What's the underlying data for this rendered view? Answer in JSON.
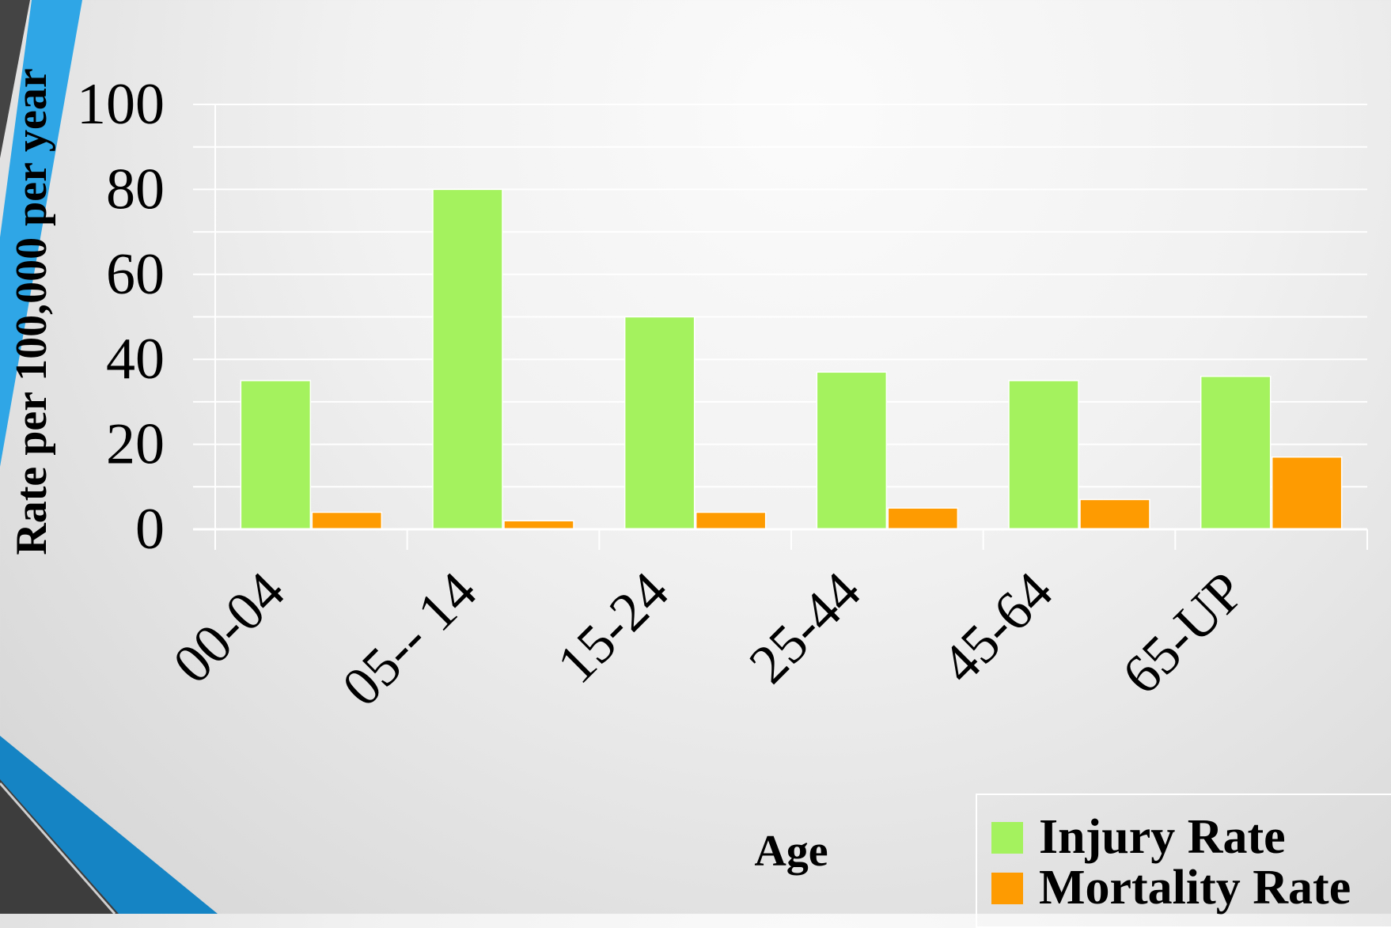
{
  "chart_data": {
    "type": "bar",
    "title": "",
    "xlabel": "Age",
    "ylabel": "Rate per 100,000 per year",
    "categories": [
      "00-04",
      "05-- 14",
      "15-24",
      "25-44",
      "45-64",
      "65-UP"
    ],
    "series": [
      {
        "name": "Injury Rate",
        "color": "#a4f25e",
        "values": [
          35,
          80,
          50,
          37,
          35,
          36
        ]
      },
      {
        "name": "Mortality Rate",
        "color": "#fe9b01",
        "values": [
          4,
          2,
          4,
          5,
          7,
          17
        ]
      }
    ],
    "ylim": [
      0,
      100
    ],
    "yticks": [
      0,
      20,
      40,
      60,
      80,
      100
    ],
    "grid": true,
    "legend_position": "bottom-right"
  },
  "colors": {
    "deco_blue": "#2fa6e6",
    "deco_dark_blue": "#1584c4",
    "deco_gray": "#444444"
  }
}
